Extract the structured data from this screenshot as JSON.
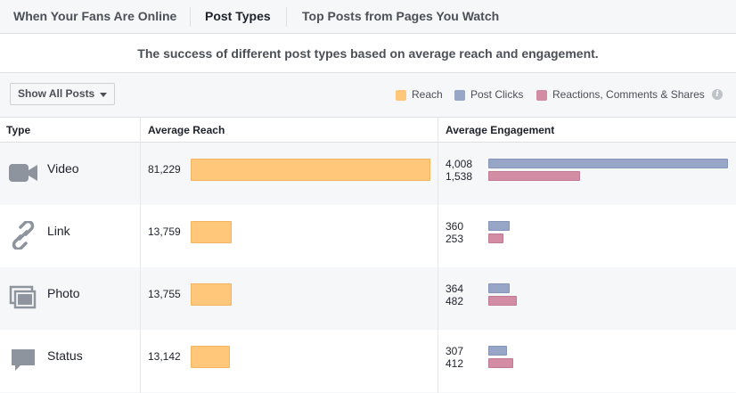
{
  "tabs": [
    {
      "label": "When Your Fans Are Online",
      "active": false
    },
    {
      "label": "Post Types",
      "active": true
    },
    {
      "label": "Top Posts from Pages You Watch",
      "active": false
    }
  ],
  "description": "The success of different post types based on average reach and engagement.",
  "filter": {
    "label": "Show All Posts"
  },
  "legend": [
    {
      "label": "Reach",
      "color": "#ffc77a"
    },
    {
      "label": "Post Clicks",
      "color": "#97a6c7"
    },
    {
      "label": "Reactions, Comments & Shares",
      "color": "#d28ca3"
    }
  ],
  "table": {
    "headers": {
      "type": "Type",
      "reach": "Average Reach",
      "engagement": "Average Engagement"
    },
    "rows": [
      {
        "type": "Video",
        "icon": "video-camera-icon",
        "reach": "81,229",
        "reach_value": 81229,
        "post_clicks": "4,008",
        "post_clicks_value": 4008,
        "reactions": "1,538",
        "reactions_value": 1538
      },
      {
        "type": "Link",
        "icon": "link-icon",
        "reach": "13,759",
        "reach_value": 13759,
        "post_clicks": "360",
        "post_clicks_value": 360,
        "reactions": "253",
        "reactions_value": 253
      },
      {
        "type": "Photo",
        "icon": "photo-icon",
        "reach": "13,755",
        "reach_value": 13755,
        "post_clicks": "364",
        "post_clicks_value": 364,
        "reactions": "482",
        "reactions_value": 482
      },
      {
        "type": "Status",
        "icon": "status-speech-icon",
        "reach": "13,142",
        "reach_value": 13142,
        "post_clicks": "307",
        "post_clicks_value": 307,
        "reactions": "412",
        "reactions_value": 412
      }
    ]
  }
}
